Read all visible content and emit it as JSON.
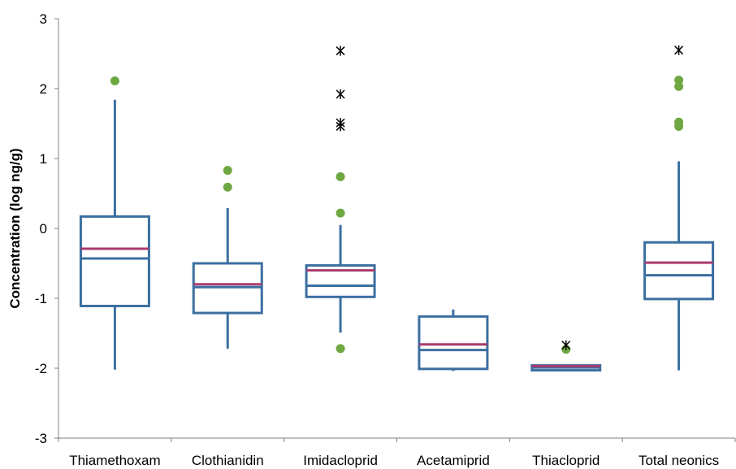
{
  "colors": {
    "box": "#3B6FA0",
    "mean_line": "#A93A6E",
    "outlier_dot": "#6FA742",
    "extreme_marker": "#000000",
    "axis": "#7F7F7F"
  },
  "chart_data": {
    "type": "box",
    "title": "",
    "xlabel": "",
    "ylabel": "Concentration (log ng/g)",
    "ylim": [
      -3,
      3
    ],
    "yticks": [
      "-3",
      "-2",
      "-1",
      "0",
      "1",
      "2",
      "3"
    ],
    "grid": false,
    "legend": "none",
    "categories": [
      "Thiamethoxam",
      "Clothianidin",
      "Imidacloprid",
      "Acetamiprid",
      "Thiacloprid",
      "Total neonics"
    ],
    "boxes": [
      {
        "whisker_low": -2.02,
        "q1": -1.11,
        "median": -0.43,
        "mean": -0.29,
        "q3": 0.17,
        "whisker_high": 1.84,
        "outliers": [
          2.11
        ],
        "extremes": []
      },
      {
        "whisker_low": -1.72,
        "q1": -1.21,
        "median": -0.84,
        "mean": -0.8,
        "q3": -0.5,
        "whisker_high": 0.29,
        "outliers": [
          0.83,
          0.59
        ],
        "extremes": []
      },
      {
        "whisker_low": -1.49,
        "q1": -0.98,
        "median": -0.82,
        "mean": -0.6,
        "q3": -0.53,
        "whisker_high": 0.05,
        "outliers": [
          0.74,
          0.22,
          -1.72
        ],
        "extremes": [
          2.54,
          1.92,
          1.51,
          1.46
        ]
      },
      {
        "whisker_low": -2.04,
        "q1": -2.01,
        "median": -1.74,
        "mean": -1.66,
        "q3": -1.26,
        "whisker_high": -1.16,
        "outliers": [],
        "extremes": []
      },
      {
        "whisker_low": -2.04,
        "q1": -2.03,
        "median": -1.99,
        "mean": -1.97,
        "q3": -1.96,
        "whisker_high": -1.96,
        "outliers": [
          -1.73
        ],
        "extremes": [
          -1.67
        ]
      },
      {
        "whisker_low": -2.03,
        "q1": -1.01,
        "median": -0.67,
        "mean": -0.49,
        "q3": -0.2,
        "whisker_high": 0.96,
        "outliers": [
          2.12,
          2.03,
          1.52,
          1.46
        ],
        "extremes": [
          2.55
        ]
      }
    ]
  }
}
